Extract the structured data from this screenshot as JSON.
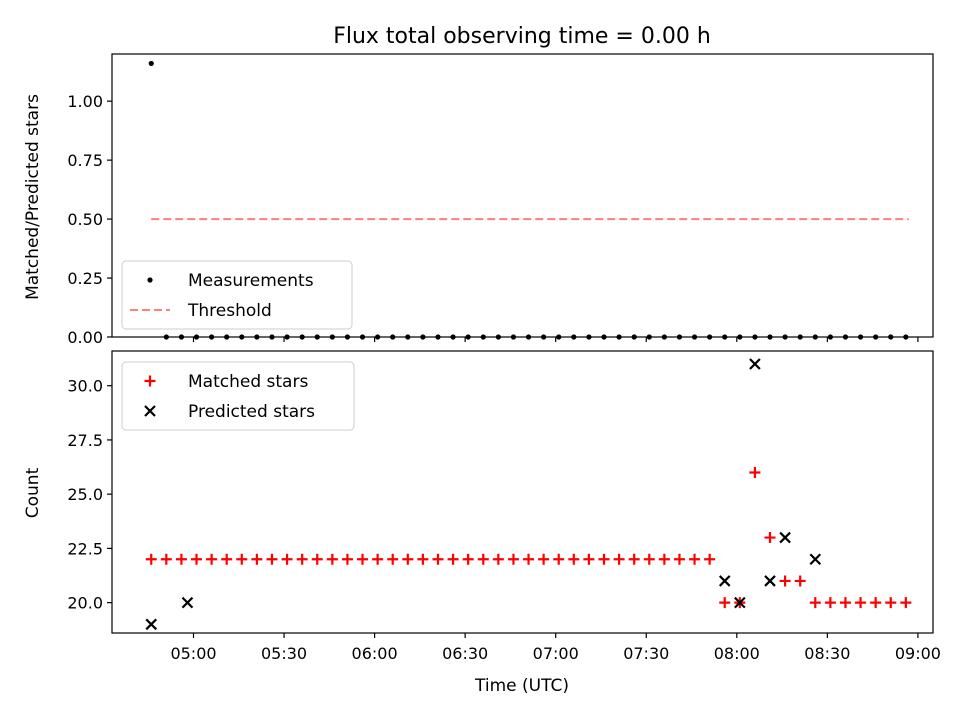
{
  "chart_data": [
    {
      "type": "scatter",
      "title": "Flux total observing time = 0.00 h",
      "xlabel": "",
      "ylabel": "Matched/Predicted stars",
      "ylim": [
        0,
        1.2
      ],
      "yticks": [
        "0.00",
        "0.25",
        "0.50",
        "0.75",
        "1.00"
      ],
      "ytick_values": [
        0,
        0.25,
        0.5,
        0.75,
        1.0
      ],
      "legend_position": "lower-left",
      "series": [
        {
          "name": "Measurements",
          "marker": "dot",
          "color": "#000000",
          "x": [
            "04:46",
            "04:51",
            "04:56",
            "05:01",
            "05:06",
            "05:11",
            "05:16",
            "05:21",
            "05:26",
            "05:31",
            "05:36",
            "05:41",
            "05:46",
            "05:51",
            "05:56",
            "06:01",
            "06:06",
            "06:11",
            "06:16",
            "06:21",
            "06:26",
            "06:31",
            "06:36",
            "06:41",
            "06:46",
            "06:51",
            "06:56",
            "07:01",
            "07:06",
            "07:11",
            "07:16",
            "07:21",
            "07:26",
            "07:31",
            "07:36",
            "07:41",
            "07:46",
            "07:51",
            "07:56",
            "08:01",
            "08:06",
            "08:11",
            "08:16",
            "08:21",
            "08:26",
            "08:31",
            "08:36",
            "08:41",
            "08:46",
            "08:51",
            "08:56"
          ],
          "y": [
            1.16,
            0,
            0,
            0,
            0,
            0,
            0,
            0,
            0,
            0,
            0,
            0,
            0,
            0,
            0,
            0,
            0,
            0,
            0,
            0,
            0,
            0,
            0,
            0,
            0,
            0,
            0,
            0,
            0,
            0,
            0,
            0,
            0,
            0,
            0,
            0,
            0,
            0,
            0,
            0,
            0,
            0,
            0,
            0,
            0,
            0,
            0,
            0,
            0,
            0,
            0
          ]
        },
        {
          "name": "Threshold",
          "style": "dashed",
          "color": "#ff7f7f",
          "x": [
            "04:46",
            "08:57"
          ],
          "y": [
            0.5,
            0.5
          ]
        }
      ]
    },
    {
      "type": "scatter",
      "title": "",
      "xlabel": "Time (UTC)",
      "ylabel": "Count",
      "ylim": [
        18.6,
        31.6
      ],
      "yticks": [
        "20.0",
        "22.5",
        "25.0",
        "27.5",
        "30.0"
      ],
      "ytick_values": [
        20,
        22.5,
        25,
        27.5,
        30
      ],
      "legend_position": "upper-left",
      "series": [
        {
          "name": "Matched stars",
          "marker": "plus",
          "color": "#ff0000",
          "x": [
            "04:46",
            "04:51",
            "04:56",
            "05:01",
            "05:06",
            "05:11",
            "05:16",
            "05:21",
            "05:26",
            "05:31",
            "05:36",
            "05:41",
            "05:46",
            "05:51",
            "05:56",
            "06:01",
            "06:06",
            "06:11",
            "06:16",
            "06:21",
            "06:26",
            "06:31",
            "06:36",
            "06:41",
            "06:46",
            "06:51",
            "06:56",
            "07:01",
            "07:06",
            "07:11",
            "07:16",
            "07:21",
            "07:26",
            "07:31",
            "07:36",
            "07:41",
            "07:46",
            "07:51",
            "07:56",
            "08:01",
            "08:06",
            "08:11",
            "08:16",
            "08:21",
            "08:26",
            "08:31",
            "08:36",
            "08:41",
            "08:46",
            "08:51",
            "08:56"
          ],
          "y": [
            22,
            22,
            22,
            22,
            22,
            22,
            22,
            22,
            22,
            22,
            22,
            22,
            22,
            22,
            22,
            22,
            22,
            22,
            22,
            22,
            22,
            22,
            22,
            22,
            22,
            22,
            22,
            22,
            22,
            22,
            22,
            22,
            22,
            22,
            22,
            22,
            22,
            22,
            20,
            20,
            26,
            23,
            21,
            21,
            20,
            20,
            20,
            20,
            20,
            20,
            20
          ]
        },
        {
          "name": "Predicted stars",
          "marker": "x",
          "color": "#000000",
          "x": [
            "04:46",
            "04:58",
            "07:56",
            "08:01",
            "08:06",
            "08:11",
            "08:16",
            "08:26"
          ],
          "y": [
            19,
            20,
            21,
            20,
            31,
            21,
            23,
            22
          ]
        }
      ]
    }
  ],
  "x_axis": {
    "ticks": [
      "05:00",
      "05:30",
      "06:00",
      "06:30",
      "07:00",
      "07:30",
      "08:00",
      "08:30",
      "09:00"
    ],
    "range": [
      "04:33",
      "09:05"
    ]
  }
}
